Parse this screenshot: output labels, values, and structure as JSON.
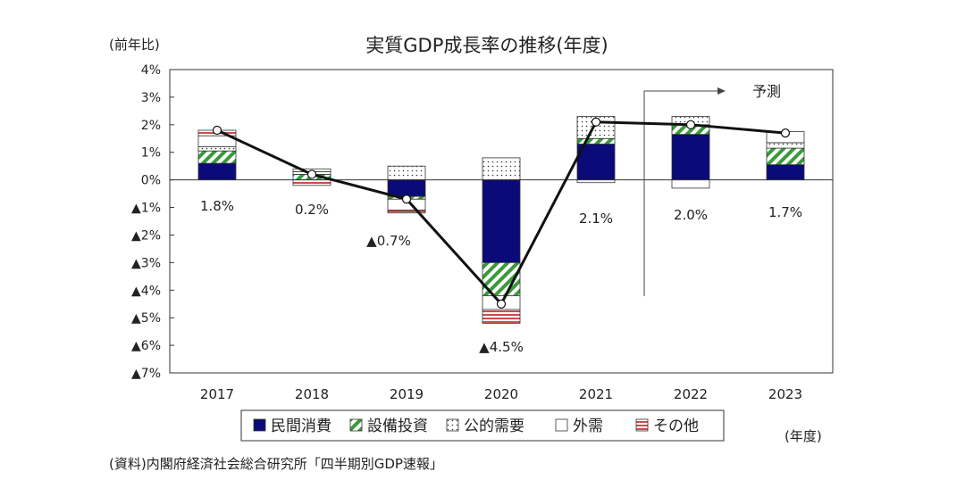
{
  "chart_data": {
    "type": "bar",
    "title": "実質GDP成長率の推移(年度)",
    "ylabel": "(前年比)",
    "xlabel": "(年度)",
    "source": "(資料)内閣府経済社会総合研究所「四半期別GDP速報」",
    "forecast_label": "予測",
    "categories": [
      "2017",
      "2018",
      "2019",
      "2020",
      "2021",
      "2022",
      "2023"
    ],
    "ylim": [
      -7,
      4
    ],
    "y_ticks": [
      4,
      3,
      2,
      1,
      0,
      -1,
      -2,
      -3,
      -4,
      -5,
      -6,
      -7
    ],
    "y_tick_labels": [
      "4%",
      "3%",
      "2%",
      "1%",
      "0%",
      "▲1%",
      "▲2%",
      "▲3%",
      "▲4%",
      "▲5%",
      "▲6%",
      "▲7%"
    ],
    "series": [
      {
        "name": "民間消費",
        "color": "#0a0a78",
        "pattern": "solid",
        "values": [
          0.6,
          0.0,
          -0.6,
          -3.0,
          1.3,
          1.65,
          0.55
        ]
      },
      {
        "name": "設備投資",
        "color": "#3a9a3a",
        "pattern": "diagonal",
        "values": [
          0.45,
          0.2,
          -0.1,
          -1.2,
          0.2,
          0.35,
          0.6
        ]
      },
      {
        "name": "公的需要",
        "color": "#333333",
        "pattern": "dots",
        "values": [
          0.15,
          0.1,
          0.5,
          0.8,
          0.8,
          0.3,
          0.2
        ]
      },
      {
        "name": "外需",
        "color": "#555555",
        "pattern": "blank",
        "values": [
          0.4,
          0.1,
          -0.4,
          -0.5,
          -0.1,
          -0.3,
          0.4
        ]
      },
      {
        "name": "その他",
        "color": "#d04a4a",
        "pattern": "stripes",
        "values": [
          0.2,
          -0.2,
          -0.1,
          -0.5,
          0.0,
          0.0,
          0.0
        ]
      }
    ],
    "total_line": {
      "values": [
        1.8,
        0.2,
        -0.7,
        -4.5,
        2.1,
        2.0,
        1.7
      ],
      "labels": [
        "1.8%",
        "0.2%",
        "▲0.7%",
        "▲4.5%",
        "2.1%",
        "2.0%",
        "1.7%"
      ]
    },
    "grid": false,
    "legend_position": "bottom"
  }
}
